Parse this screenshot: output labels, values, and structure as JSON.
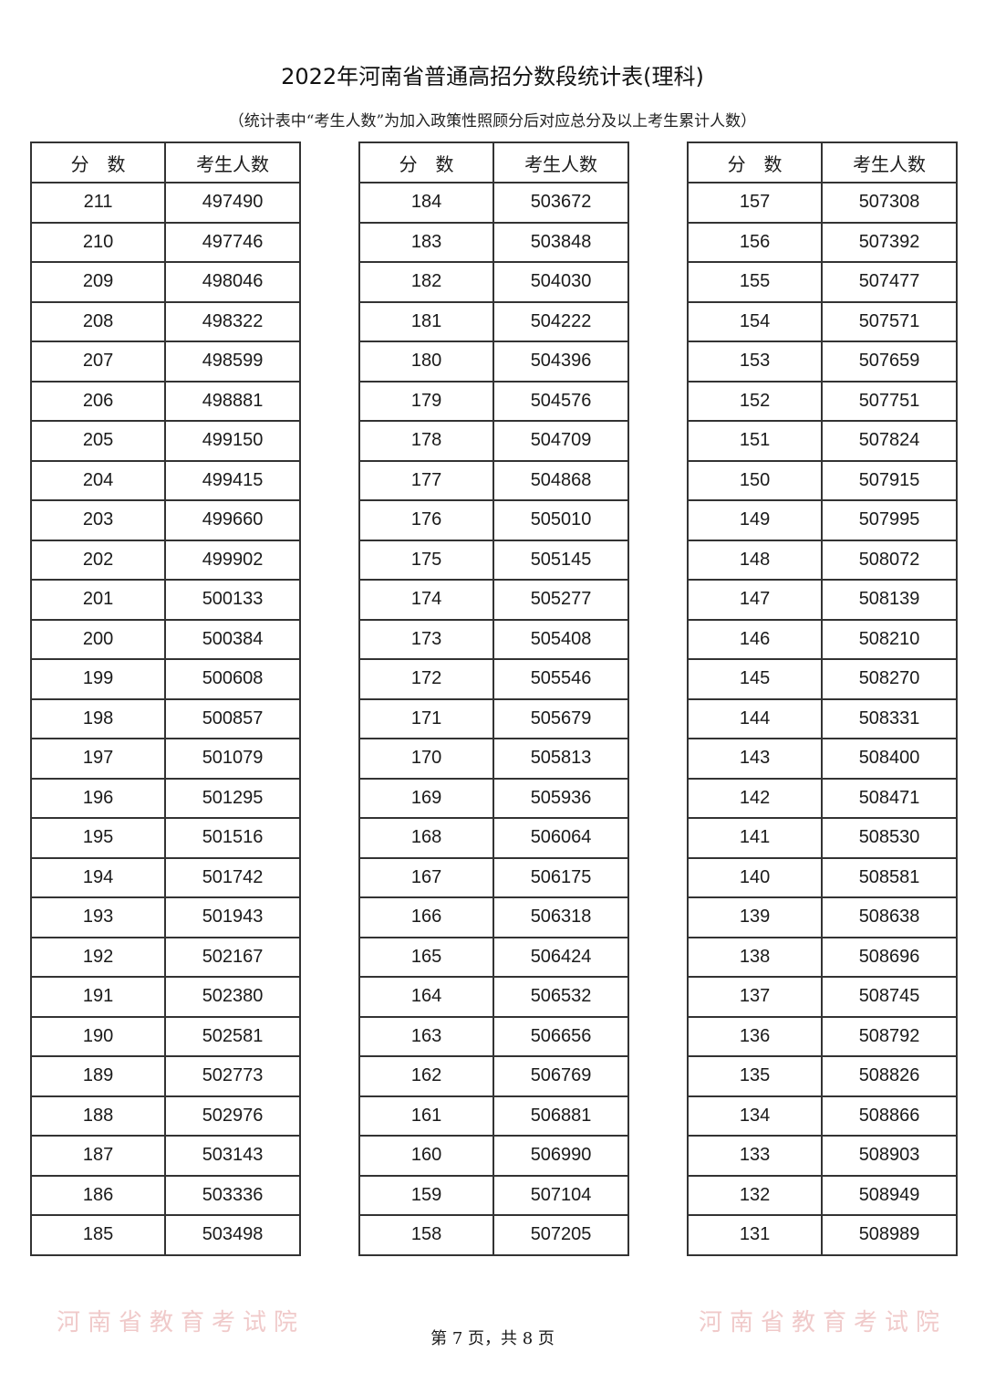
{
  "title": "2022年河南省普通高招分数段统计表(理科)",
  "subtitle": "（统计表中“考生人数”为加入政策性照顾分后对应总分及以上考生累计人数）",
  "watermark": "河南省教育考试院",
  "columns": {
    "score": "分　数",
    "count": "考生人数"
  },
  "tables": [
    {
      "rows": [
        [
          "211",
          "497490"
        ],
        [
          "210",
          "497746"
        ],
        [
          "209",
          "498046"
        ],
        [
          "208",
          "498322"
        ],
        [
          "207",
          "498599"
        ],
        [
          "206",
          "498881"
        ],
        [
          "205",
          "499150"
        ],
        [
          "204",
          "499415"
        ],
        [
          "203",
          "499660"
        ],
        [
          "202",
          "499902"
        ],
        [
          "201",
          "500133"
        ],
        [
          "200",
          "500384"
        ],
        [
          "199",
          "500608"
        ],
        [
          "198",
          "500857"
        ],
        [
          "197",
          "501079"
        ],
        [
          "196",
          "501295"
        ],
        [
          "195",
          "501516"
        ],
        [
          "194",
          "501742"
        ],
        [
          "193",
          "501943"
        ],
        [
          "192",
          "502167"
        ],
        [
          "191",
          "502380"
        ],
        [
          "190",
          "502581"
        ],
        [
          "189",
          "502773"
        ],
        [
          "188",
          "502976"
        ],
        [
          "187",
          "503143"
        ],
        [
          "186",
          "503336"
        ],
        [
          "185",
          "503498"
        ]
      ]
    },
    {
      "rows": [
        [
          "184",
          "503672"
        ],
        [
          "183",
          "503848"
        ],
        [
          "182",
          "504030"
        ],
        [
          "181",
          "504222"
        ],
        [
          "180",
          "504396"
        ],
        [
          "179",
          "504576"
        ],
        [
          "178",
          "504709"
        ],
        [
          "177",
          "504868"
        ],
        [
          "176",
          "505010"
        ],
        [
          "175",
          "505145"
        ],
        [
          "174",
          "505277"
        ],
        [
          "173",
          "505408"
        ],
        [
          "172",
          "505546"
        ],
        [
          "171",
          "505679"
        ],
        [
          "170",
          "505813"
        ],
        [
          "169",
          "505936"
        ],
        [
          "168",
          "506064"
        ],
        [
          "167",
          "506175"
        ],
        [
          "166",
          "506318"
        ],
        [
          "165",
          "506424"
        ],
        [
          "164",
          "506532"
        ],
        [
          "163",
          "506656"
        ],
        [
          "162",
          "506769"
        ],
        [
          "161",
          "506881"
        ],
        [
          "160",
          "506990"
        ],
        [
          "159",
          "507104"
        ],
        [
          "158",
          "507205"
        ]
      ]
    },
    {
      "rows": [
        [
          "157",
          "507308"
        ],
        [
          "156",
          "507392"
        ],
        [
          "155",
          "507477"
        ],
        [
          "154",
          "507571"
        ],
        [
          "153",
          "507659"
        ],
        [
          "152",
          "507751"
        ],
        [
          "151",
          "507824"
        ],
        [
          "150",
          "507915"
        ],
        [
          "149",
          "507995"
        ],
        [
          "148",
          "508072"
        ],
        [
          "147",
          "508139"
        ],
        [
          "146",
          "508210"
        ],
        [
          "145",
          "508270"
        ],
        [
          "144",
          "508331"
        ],
        [
          "143",
          "508400"
        ],
        [
          "142",
          "508471"
        ],
        [
          "141",
          "508530"
        ],
        [
          "140",
          "508581"
        ],
        [
          "139",
          "508638"
        ],
        [
          "138",
          "508696"
        ],
        [
          "137",
          "508745"
        ],
        [
          "136",
          "508792"
        ],
        [
          "135",
          "508826"
        ],
        [
          "134",
          "508866"
        ],
        [
          "133",
          "508903"
        ],
        [
          "132",
          "508949"
        ],
        [
          "131",
          "508989"
        ]
      ]
    }
  ],
  "footer": "第 7 页，共 8 页"
}
